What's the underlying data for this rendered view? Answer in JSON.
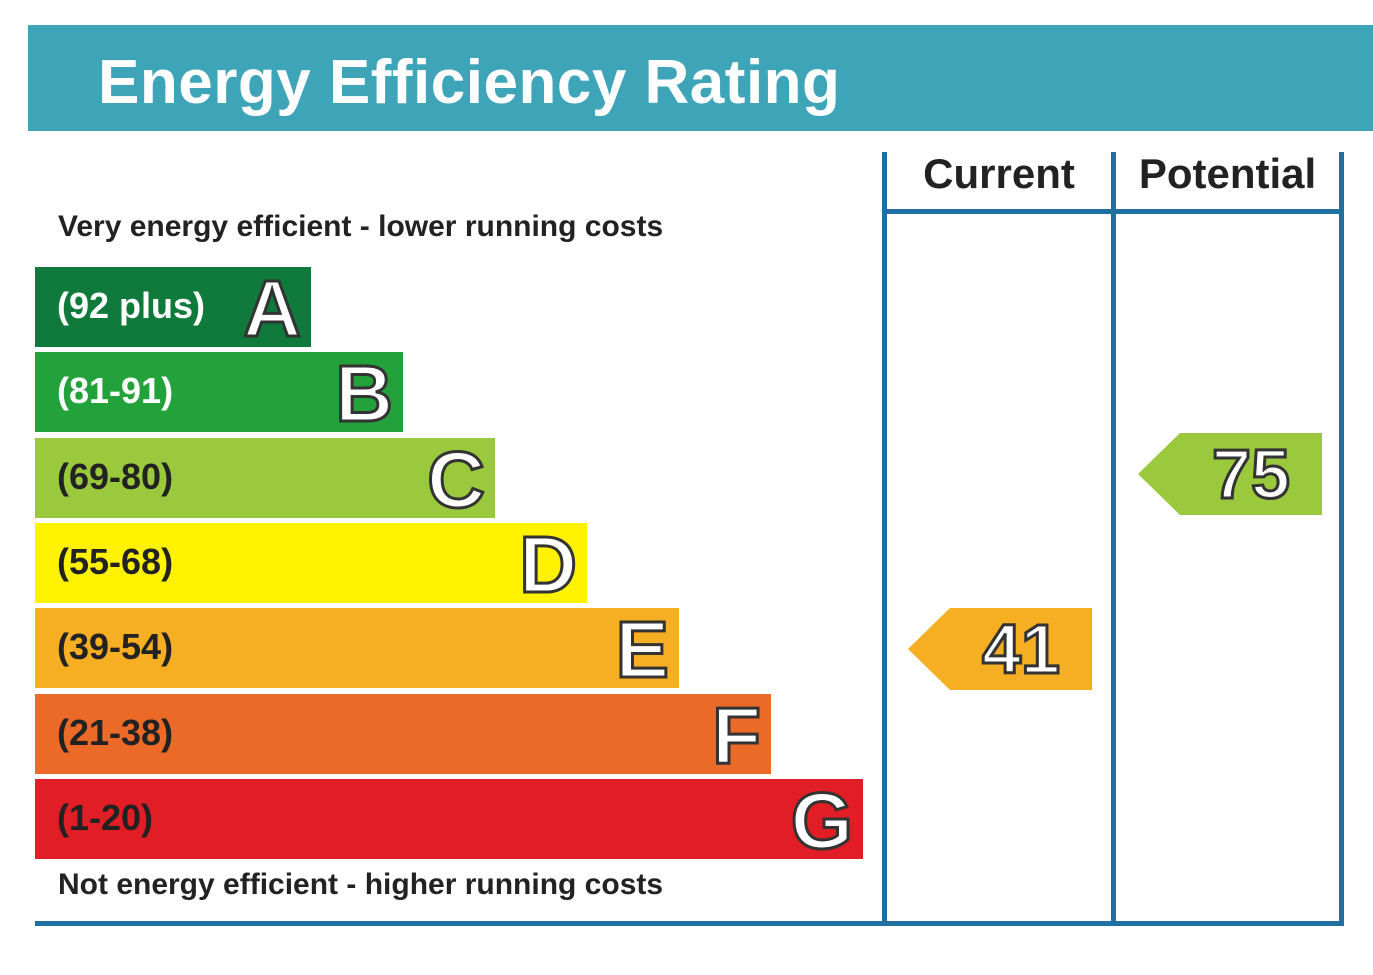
{
  "title": "Energy Efficiency Rating",
  "top_caption": "Very energy efficient - lower running costs",
  "bottom_caption": "Not energy efficient - higher running costs",
  "columns": {
    "current": "Current",
    "potential": "Potential"
  },
  "chart_data": {
    "type": "bar",
    "title": "Energy Efficiency Rating",
    "bands": [
      {
        "range": "(92 plus)",
        "letter": "A",
        "color": "#0f7a3c",
        "text_color": "#ffffff"
      },
      {
        "range": "(81-91)",
        "letter": "B",
        "color": "#23a23c",
        "text_color": "#ffffff"
      },
      {
        "range": "(69-80)",
        "letter": "C",
        "color": "#9bc93d",
        "text_color": "#222222"
      },
      {
        "range": "(55-68)",
        "letter": "D",
        "color": "#fff200",
        "text_color": "#222222"
      },
      {
        "range": "(39-54)",
        "letter": "E",
        "color": "#f6ae22",
        "text_color": "#222222"
      },
      {
        "range": "(21-38)",
        "letter": "F",
        "color": "#ec6a28",
        "text_color": "#222222"
      },
      {
        "range": "(1-20)",
        "letter": "G",
        "color": "#e11d25",
        "text_color": "#222222"
      }
    ],
    "current": {
      "value": 41,
      "band": "E",
      "color": "#f6ae22"
    },
    "potential": {
      "value": 75,
      "band": "C",
      "color": "#9bc93d"
    }
  },
  "colors": {
    "title_bar": "#3ea4b8",
    "frame": "#1f6fa0"
  }
}
